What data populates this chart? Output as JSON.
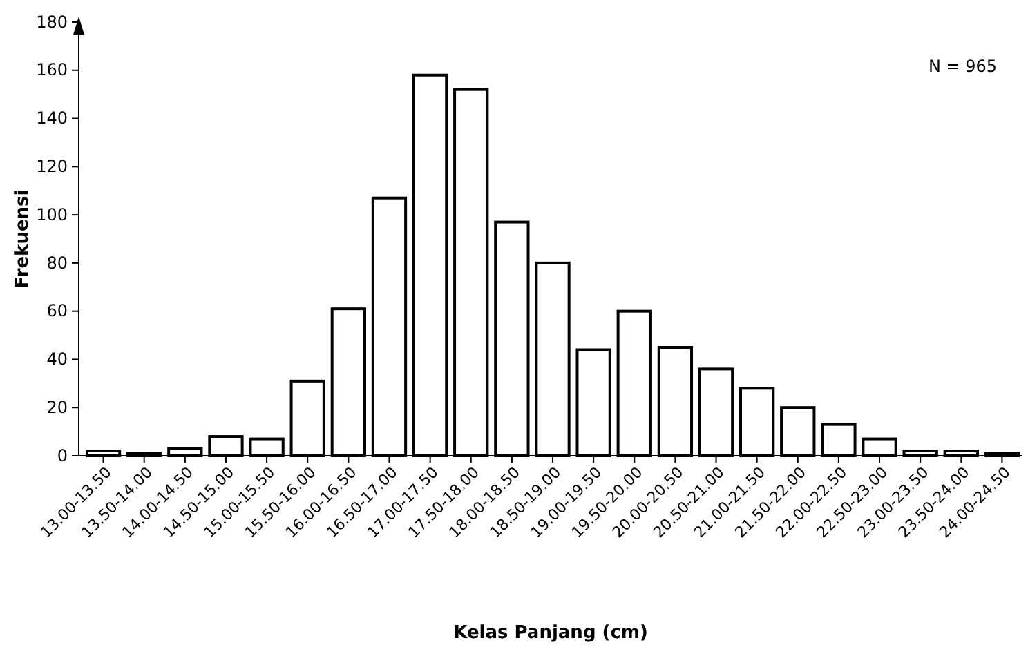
{
  "chart_data": {
    "type": "bar",
    "xlabel": "Kelas Panjang (cm)",
    "ylabel": "Frekuensi",
    "annotations": [
      "N = 965"
    ],
    "categories": [
      "13.00-13.50",
      "13.50-14.00",
      "14.00-14.50",
      "14.50-15.00",
      "15.00-15.50",
      "15.50-16.00",
      "16.00-16.50",
      "16.50-17.00",
      "17.00-17.50",
      "17.50-18.00",
      "18.00-18.50",
      "18.50-19.00",
      "19.00-19.50",
      "19.50-20.00",
      "20.00-20.50",
      "20.50-21.00",
      "21.00-21.50",
      "21.50-22.00",
      "22.00-22.50",
      "22.50-23.00",
      "23.00-23.50",
      "23.50-24.00",
      "24.00-24.50"
    ],
    "values": [
      2,
      1,
      3,
      8,
      7,
      31,
      61,
      107,
      158,
      152,
      97,
      80,
      44,
      60,
      45,
      36,
      28,
      20,
      13,
      7,
      2,
      2,
      1
    ],
    "color": "#ffffff",
    "ylim": [
      0,
      180
    ],
    "yticks": [
      0,
      20,
      40,
      60,
      80,
      100,
      120,
      140,
      160,
      180
    ]
  }
}
